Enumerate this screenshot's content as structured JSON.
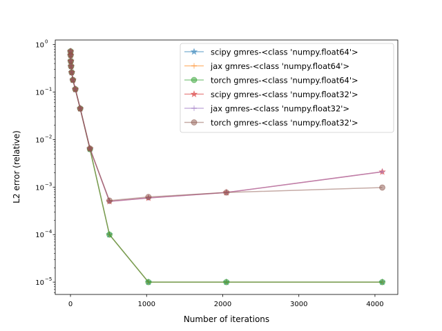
{
  "chart_data": {
    "type": "line",
    "xlabel": "Number of iterations",
    "ylabel": "L2 error (relative)",
    "xlim": [
      -200,
      4300
    ],
    "ylim": [
      5.5e-06,
      1.25
    ],
    "yscale": "log",
    "grid": false,
    "legend_position": "upper-right",
    "x_ticks": [
      0,
      1000,
      2000,
      3000,
      4000
    ],
    "x_tick_labels": [
      "0",
      "1000",
      "2000",
      "3000",
      "4000"
    ],
    "y_ticks": [
      1e-05,
      0.0001,
      0.001,
      0.01,
      0.1,
      1
    ],
    "y_tick_labels": [
      "10",
      "10",
      "10",
      "10",
      "10",
      "10"
    ],
    "y_tick_exponents": [
      "−5",
      "−4",
      "−3",
      "−2",
      "−1",
      "0"
    ],
    "x": [
      1,
      2,
      4,
      8,
      16,
      32,
      64,
      128,
      256,
      512,
      1024,
      2048,
      4096
    ],
    "series": [
      {
        "name": "scipy gmres-<class 'numpy.float64'>",
        "color": "#1f77b4",
        "marker": "star",
        "values": [
          0.72,
          0.6,
          0.45,
          0.35,
          0.26,
          0.18,
          0.115,
          0.045,
          0.0063,
          0.0001,
          1e-05,
          1e-05,
          1e-05
        ]
      },
      {
        "name": "jax gmres-<class 'numpy.float64'>",
        "color": "#ff7f0e",
        "marker": "plus",
        "values": [
          0.72,
          0.6,
          0.45,
          0.35,
          0.26,
          0.18,
          0.115,
          0.045,
          0.0063,
          0.0001,
          1e-05,
          1e-05,
          1e-05
        ]
      },
      {
        "name": "torch gmres-<class 'numpy.float64'>",
        "color": "#2ca02c",
        "marker": "circle",
        "values": [
          0.72,
          0.6,
          0.45,
          0.35,
          0.26,
          0.18,
          0.115,
          0.045,
          0.0063,
          0.0001,
          1e-05,
          1e-05,
          1e-05
        ]
      },
      {
        "name": "scipy gmres-<class 'numpy.float32'>",
        "color": "#d62728",
        "marker": "star",
        "values": [
          0.72,
          0.6,
          0.45,
          0.35,
          0.26,
          0.18,
          0.115,
          0.045,
          0.0065,
          0.0005,
          0.00059,
          0.00077,
          0.0021
        ]
      },
      {
        "name": "jax gmres-<class 'numpy.float32'>",
        "color": "#9467bd",
        "marker": "plus",
        "values": [
          0.72,
          0.6,
          0.45,
          0.35,
          0.26,
          0.18,
          0.115,
          0.045,
          0.0065,
          0.0005,
          0.00059,
          0.00077,
          0.0021
        ]
      },
      {
        "name": "torch gmres-<class 'numpy.float32'>",
        "color": "#8c564b",
        "marker": "circle",
        "values": [
          0.72,
          0.6,
          0.45,
          0.35,
          0.26,
          0.18,
          0.115,
          0.045,
          0.0065,
          0.00052,
          0.00062,
          0.00077,
          0.00098
        ]
      }
    ]
  }
}
